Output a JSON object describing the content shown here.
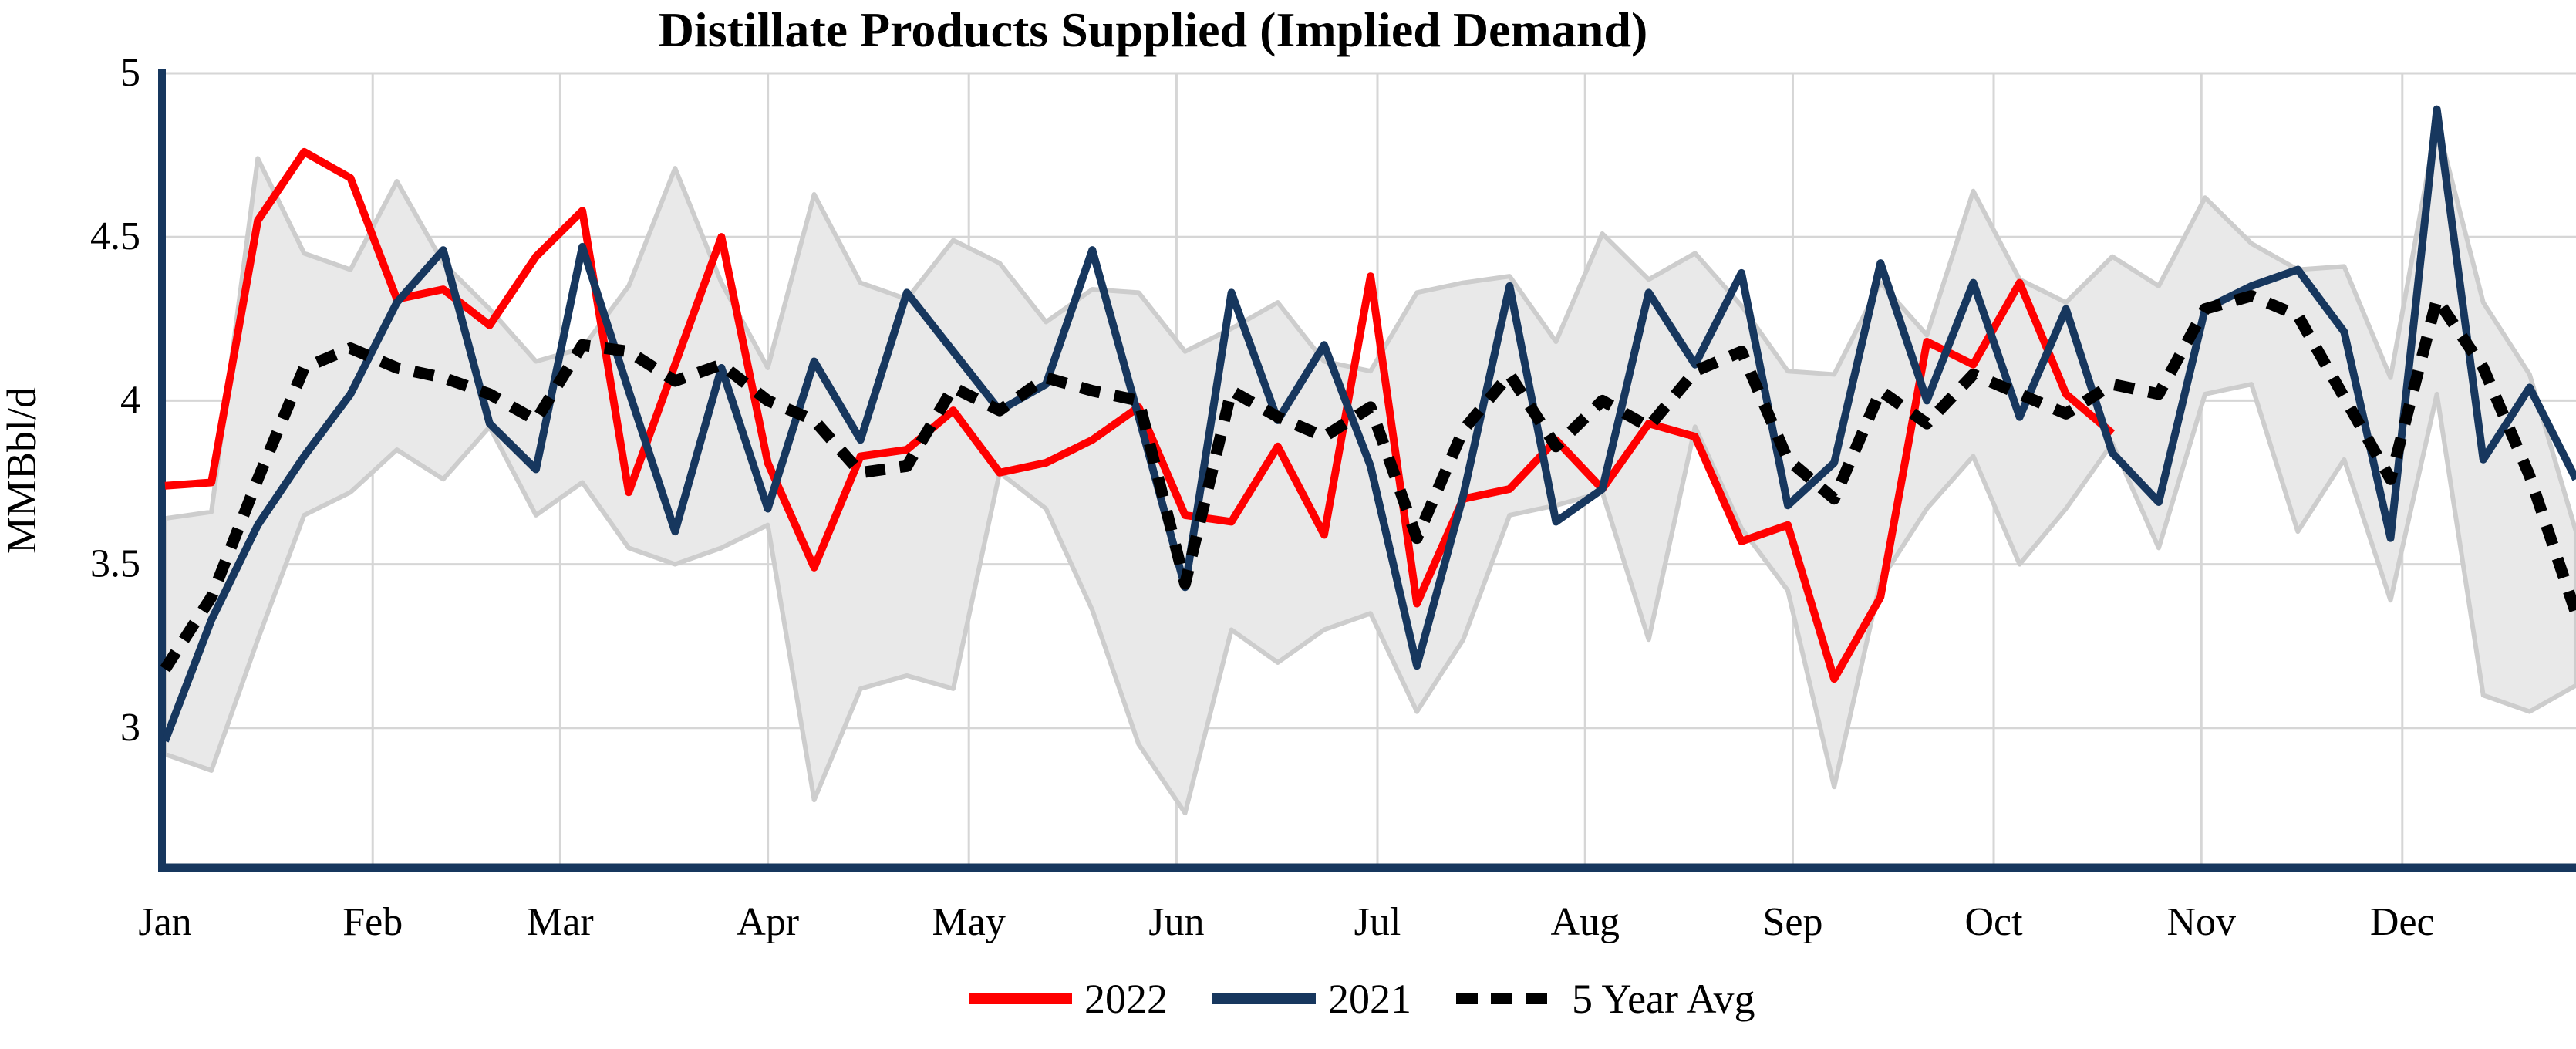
{
  "chart_data": {
    "type": "line",
    "title": "Distillate Products Supplied (Implied Demand)",
    "ylabel": "MMBbl/d",
    "ylim": [
      2.573,
      5.0
    ],
    "yticks": [
      "5",
      "4.5",
      "4",
      "3.5",
      "3"
    ],
    "ytick_values": [
      5,
      4.5,
      4,
      3.5,
      3
    ],
    "grid": true,
    "legend_position": "bottom-center",
    "months": [
      "Jan",
      "Feb",
      "Mar",
      "Apr",
      "May",
      "Jun",
      "Jul",
      "Aug",
      "Sep",
      "Oct",
      "Nov",
      "Dec"
    ],
    "month_start_day": [
      0,
      31,
      59,
      90,
      120,
      151,
      181,
      212,
      243,
      273,
      304,
      334
    ],
    "weeks": 53,
    "x_unit": "weekly observations (Jan-Dec)",
    "band": {
      "name": "5-year range",
      "fill": "#E9E9E9",
      "edge": "#CDCDCD",
      "top": [
        3.64,
        3.66,
        4.74,
        4.45,
        4.4,
        4.67,
        4.42,
        4.28,
        4.12,
        4.16,
        4.35,
        4.71,
        4.36,
        4.1,
        4.63,
        4.36,
        4.31,
        4.49,
        4.42,
        4.24,
        4.34,
        4.33,
        4.15,
        4.22,
        4.3,
        4.12,
        4.09,
        4.33,
        4.36,
        4.38,
        4.18,
        4.51,
        4.37,
        4.45,
        4.29,
        4.09,
        4.08,
        4.36,
        4.2,
        4.64,
        4.37,
        4.3,
        4.44,
        4.35,
        4.62,
        4.48,
        4.4,
        4.41,
        4.07,
        4.85,
        4.3,
        4.08,
        3.6
      ],
      "bottom": [
        2.92,
        2.87,
        3.27,
        3.65,
        3.72,
        3.85,
        3.76,
        3.92,
        3.65,
        3.75,
        3.55,
        3.5,
        3.55,
        3.62,
        2.78,
        3.12,
        3.16,
        3.12,
        3.78,
        3.67,
        3.36,
        2.95,
        2.74,
        3.3,
        3.2,
        3.3,
        3.35,
        3.05,
        3.27,
        3.65,
        3.68,
        3.72,
        3.27,
        3.92,
        3.61,
        3.42,
        2.82,
        3.45,
        3.67,
        3.83,
        3.5,
        3.67,
        3.87,
        3.55,
        4.02,
        4.05,
        3.6,
        3.82,
        3.39,
        4.02,
        3.1,
        3.05,
        3.13
      ]
    },
    "series": [
      {
        "name": "2022",
        "color": "#FF0000",
        "style": "solid",
        "width": 10,
        "values": [
          3.74,
          3.75,
          4.55,
          4.76,
          4.68,
          4.31,
          4.34,
          4.23,
          4.44,
          4.58,
          3.72,
          4.11,
          4.5,
          3.81,
          3.49,
          3.83,
          3.85,
          3.97,
          3.78,
          3.81,
          3.88,
          3.98,
          3.65,
          3.63,
          3.86,
          3.59,
          4.38,
          3.38,
          3.7,
          3.73,
          3.88,
          3.73,
          3.93,
          3.89,
          3.57,
          3.62,
          3.15,
          3.4,
          4.18,
          4.11,
          4.36,
          4.02,
          3.9
        ]
      },
      {
        "name": "2021",
        "color": "#17375E",
        "style": "solid",
        "width": 10,
        "values": [
          2.96,
          3.33,
          3.62,
          3.83,
          4.02,
          4.3,
          4.46,
          3.93,
          3.79,
          4.47,
          4.03,
          3.6,
          4.1,
          3.67,
          4.12,
          3.88,
          4.33,
          4.15,
          3.97,
          4.05,
          4.46,
          3.95,
          3.43,
          4.33,
          3.94,
          4.17,
          3.8,
          3.19,
          3.71,
          4.35,
          3.63,
          3.73,
          4.33,
          4.11,
          4.39,
          3.68,
          3.81,
          4.42,
          4.0,
          4.36,
          3.95,
          4.28,
          3.84,
          3.69,
          4.28,
          4.35,
          4.4,
          4.21,
          3.58,
          4.89,
          3.82,
          4.04,
          3.76
        ]
      },
      {
        "name": "5 Year Avg",
        "color": "#000000",
        "style": "dotted",
        "width": 15,
        "values": [
          3.18,
          3.4,
          3.76,
          4.1,
          4.16,
          4.1,
          4.07,
          4.02,
          3.94,
          4.17,
          4.15,
          4.06,
          4.11,
          4.0,
          3.94,
          3.78,
          3.8,
          4.04,
          3.97,
          4.07,
          4.03,
          4.0,
          3.44,
          4.03,
          3.95,
          3.89,
          3.98,
          3.58,
          3.91,
          4.08,
          3.86,
          4.0,
          3.92,
          4.09,
          4.15,
          3.82,
          3.7,
          4.03,
          3.93,
          4.08,
          4.02,
          3.96,
          4.05,
          4.02,
          4.28,
          4.32,
          4.26,
          4.01,
          3.76,
          4.31,
          4.1,
          3.77,
          3.35
        ]
      }
    ],
    "axis_color": "#17375E",
    "gridline_color": "#D6D6D6"
  }
}
